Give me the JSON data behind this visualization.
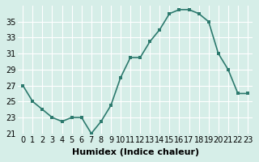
{
  "x": [
    0,
    1,
    2,
    3,
    4,
    5,
    6,
    7,
    8,
    9,
    10,
    11,
    12,
    13,
    14,
    15,
    16,
    17,
    18,
    19,
    20,
    21,
    22,
    23
  ],
  "y": [
    27,
    25,
    24,
    23,
    22.5,
    23,
    23,
    21,
    22.5,
    24.5,
    28,
    30.5,
    30.5,
    32.5,
    34,
    36,
    36.5,
    36.5,
    36,
    35,
    31,
    29,
    26,
    26
  ],
  "line_color": "#2d7a6e",
  "marker": "s",
  "marker_size": 3,
  "bg_color": "#d6eee8",
  "grid_color": "#ffffff",
  "xlabel": "Humidex (Indice chaleur)",
  "xlim": [
    -0.5,
    23.5
  ],
  "ylim": [
    21,
    37
  ],
  "yticks": [
    21,
    23,
    25,
    27,
    29,
    31,
    33,
    35
  ],
  "xticks": [
    0,
    1,
    2,
    3,
    4,
    5,
    6,
    7,
    8,
    9,
    10,
    11,
    12,
    13,
    14,
    15,
    16,
    17,
    18,
    19,
    20,
    21,
    22,
    23
  ],
  "tick_fontsize": 7,
  "xlabel_fontsize": 8
}
